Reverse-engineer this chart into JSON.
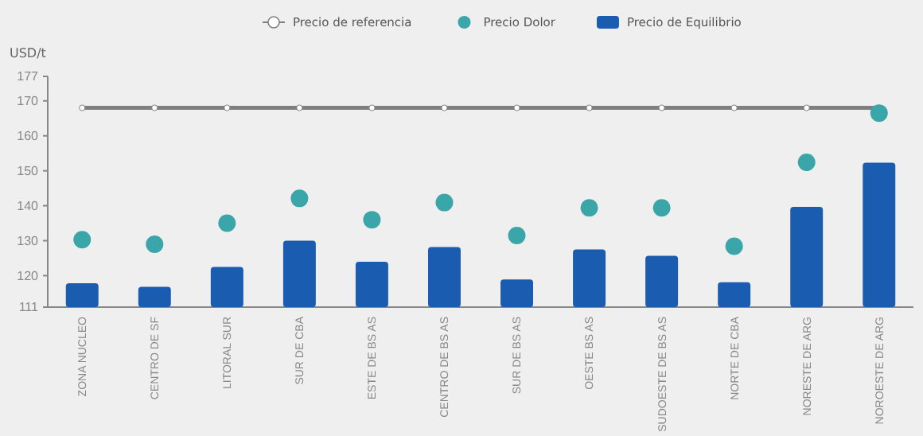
{
  "chart_data": {
    "type": "bar",
    "ylabel": "USD/t",
    "categories": [
      "ZONA NUCLEO",
      "CENTRO DE SF",
      "LITORAL SUR",
      "SUR DE CBA",
      "ESTE DE BS AS",
      "CENTRO DE BS AS",
      "SUR DE BS AS",
      "OESTE BS AS",
      "SUDOESTE DE BS AS",
      "NORTE DE CBA",
      "NORESTE DE ARG",
      "NOROESTE DE ARG"
    ],
    "series": [
      {
        "name": "Precio de referencia",
        "type": "line",
        "color": "#7f7f7f",
        "marker": "circle",
        "values": [
          168,
          168,
          168,
          168,
          168,
          168,
          168,
          168,
          168,
          168,
          168,
          168
        ]
      },
      {
        "name": "Precio Dolor",
        "type": "scatter",
        "color": "#3aa6aa",
        "marker": "circle",
        "values": [
          130.3,
          129,
          135,
          142.1,
          136,
          140.9,
          131.5,
          139.4,
          139.4,
          128.4,
          152.4,
          166.5
        ]
      },
      {
        "name": "Precio de Equilibrio",
        "type": "bar",
        "color": "#1a5cb0",
        "values": [
          117.8,
          116.8,
          122.5,
          130,
          124,
          128.2,
          118.9,
          127.5,
          125.7,
          118.1,
          139.7,
          152.3
        ]
      }
    ],
    "ylim": [
      111,
      177
    ],
    "yticks": [
      111,
      120,
      130,
      140,
      150,
      160,
      170,
      177
    ],
    "grid": false,
    "legend": "top"
  }
}
